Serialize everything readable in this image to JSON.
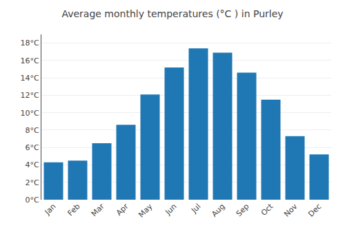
{
  "chart_data": {
    "type": "bar",
    "title": "Average monthly temperatures (°C ) in Purley",
    "categories": [
      "Jan",
      "Feb",
      "Mar",
      "Apr",
      "May",
      "Jun",
      "Jul",
      "Aug",
      "Sep",
      "Oct",
      "Nov",
      "Dec"
    ],
    "values": [
      4.3,
      4.5,
      6.5,
      8.6,
      12.1,
      15.2,
      17.4,
      16.9,
      14.6,
      11.5,
      7.3,
      5.2
    ],
    "ylim": [
      0,
      19
    ],
    "yticks": [
      {
        "value": 0,
        "label": "0°C"
      },
      {
        "value": 2,
        "label": "2°C"
      },
      {
        "value": 4,
        "label": "4°C"
      },
      {
        "value": 6,
        "label": "6°C"
      },
      {
        "value": 8,
        "label": "8°C"
      },
      {
        "value": 10,
        "label": "10°C"
      },
      {
        "value": 12,
        "label": "12°C"
      },
      {
        "value": 14,
        "label": "14°C"
      },
      {
        "value": 16,
        "label": "16°C"
      },
      {
        "value": 18,
        "label": "18°C"
      }
    ],
    "grid": true
  }
}
